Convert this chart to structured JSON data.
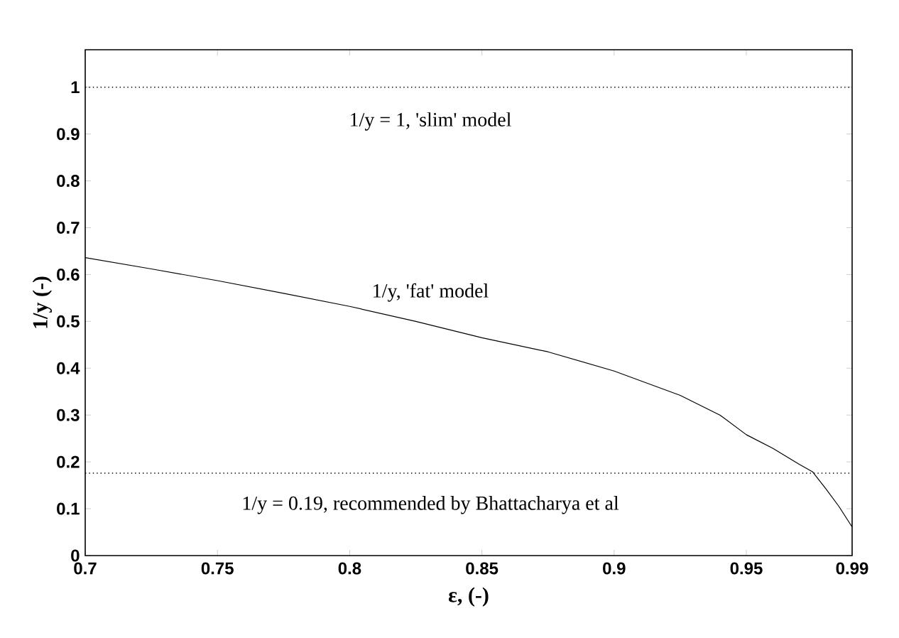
{
  "chart_data": {
    "type": "line",
    "xlabel": "ε, (-)",
    "ylabel": "1/y (-)",
    "x": [
      0.7,
      0.725,
      0.75,
      0.775,
      0.8,
      0.825,
      0.85,
      0.875,
      0.9,
      0.925,
      0.94,
      0.95,
      0.96,
      0.97,
      0.975,
      0.98,
      0.985,
      0.99
    ],
    "series": [
      {
        "color": "#000000",
        "values": [
          0.636,
          0.612,
          0.587,
          0.56,
          0.532,
          0.5,
          0.465,
          0.435,
          0.394,
          0.342,
          0.3,
          0.258,
          0.229,
          0.195,
          0.179,
          0.143,
          0.105,
          0.061
        ]
      }
    ],
    "xlim": [
      0.7,
      0.99
    ],
    "ylim": [
      0,
      1.08
    ],
    "xticks": [
      0.7,
      0.75,
      0.8,
      0.85,
      0.9,
      0.95,
      0.99
    ],
    "yticks": [
      0,
      0.1,
      0.2,
      0.3,
      0.4,
      0.5,
      0.6,
      0.7,
      0.8,
      0.9,
      1
    ],
    "ref_lines": [
      {
        "axis": "y",
        "value": 1,
        "color": "#000000",
        "line_style": "dotted",
        "label": "1/y = 1, 'slim' model"
      },
      {
        "axis": "y",
        "value": 0.176,
        "color": "#000000",
        "line_style": "dotted"
      }
    ],
    "annotations": [
      "1/y, 'fat' model",
      "1/y = 0.19, recommended by Bhattacharya et al"
    ],
    "grid": false,
    "marker": "none",
    "line_style": "solid"
  }
}
